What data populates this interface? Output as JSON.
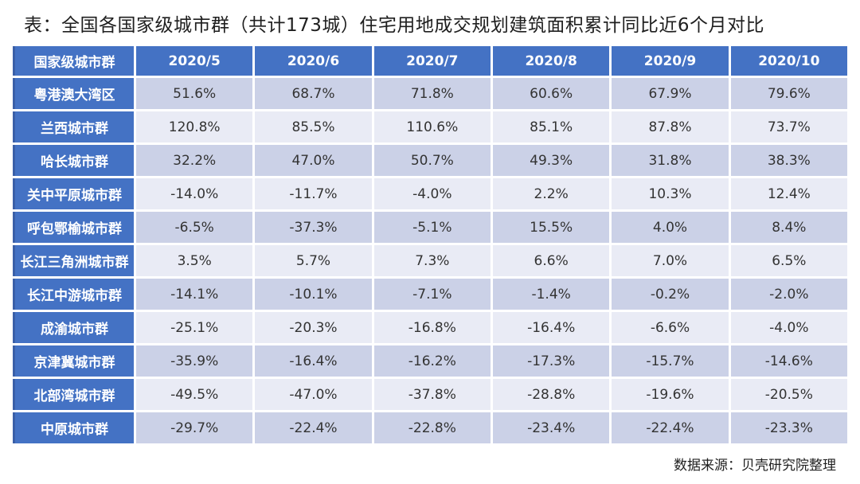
{
  "title": "表：全国各国家级城市群（共计173城）住宅用地成交规划建筑面积累计同比近6个月对比",
  "source_note": "数据来源：贝壳研究院整理",
  "colors": {
    "header_bg": "#4472C4",
    "band_dark": "#CBD1E7",
    "band_light": "#E9EBF5",
    "accent_edge": "#3A5FA8",
    "cell_text": "#333333",
    "header_text": "#FFFFFF"
  },
  "chart_data": {
    "type": "table",
    "title": "表：全国各国家级城市群（共计173城）住宅用地成交规划建筑面积累计同比近6个月对比",
    "unit": "%",
    "columns": [
      "国家级城市群",
      "2020/5",
      "2020/6",
      "2020/7",
      "2020/8",
      "2020/9",
      "2020/10"
    ],
    "rows": [
      {
        "label": "粤港澳大湾区",
        "values": [
          51.6,
          68.7,
          71.8,
          60.6,
          67.9,
          79.6
        ]
      },
      {
        "label": "兰西城市群",
        "values": [
          120.8,
          85.5,
          110.6,
          85.1,
          87.8,
          73.7
        ]
      },
      {
        "label": "哈长城市群",
        "values": [
          32.2,
          47.0,
          50.7,
          49.3,
          31.8,
          38.3
        ]
      },
      {
        "label": "关中平原城市群",
        "values": [
          -14.0,
          -11.7,
          -4.0,
          2.2,
          10.3,
          12.4
        ]
      },
      {
        "label": "呼包鄂榆城市群",
        "values": [
          -6.5,
          -37.3,
          -5.1,
          15.5,
          4.0,
          8.4
        ]
      },
      {
        "label": "长江三角洲城市群",
        "values": [
          3.5,
          5.7,
          7.3,
          6.6,
          7.0,
          6.5
        ]
      },
      {
        "label": "长江中游城市群",
        "values": [
          -14.1,
          -10.1,
          -7.1,
          -1.4,
          -0.2,
          -2.0
        ]
      },
      {
        "label": "成渝城市群",
        "values": [
          -25.1,
          -20.3,
          -16.8,
          -16.4,
          -6.6,
          -4.0
        ]
      },
      {
        "label": "京津冀城市群",
        "values": [
          -35.9,
          -16.4,
          -16.2,
          -17.3,
          -15.7,
          -14.6
        ]
      },
      {
        "label": "北部湾城市群",
        "values": [
          -49.5,
          -47.0,
          -37.8,
          -28.8,
          -19.6,
          -20.5
        ]
      },
      {
        "label": "中原城市群",
        "values": [
          -29.7,
          -22.4,
          -22.8,
          -23.4,
          -22.4,
          -23.3
        ]
      }
    ],
    "source": "数据来源：贝壳研究院整理"
  }
}
